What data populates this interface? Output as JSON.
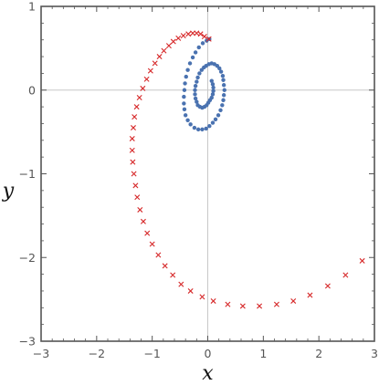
{
  "chart_data": {
    "type": "scatter",
    "title": "",
    "xlabel": "x",
    "ylabel": "y",
    "xlim": [
      -3,
      3
    ],
    "ylim": [
      -3,
      1
    ],
    "xticks": [
      -3,
      -2,
      -1,
      0,
      1,
      2,
      3
    ],
    "yticks": [
      -3,
      -2,
      -1,
      0,
      1
    ],
    "xtick_labels": [
      "−3",
      "−2",
      "−1",
      "0",
      "1",
      "2",
      "3"
    ],
    "ytick_labels": [
      "−3",
      "−2",
      "−1",
      "0",
      "1"
    ],
    "grid": "zero-lines",
    "colors": {
      "blue": "#4a72b0",
      "red": "#d62728",
      "frame": "#555555",
      "zeroline": "#c8c8c8"
    },
    "series": [
      {
        "marker": "dot",
        "color": "#4a72b0",
        "points": [
          [
            0.07,
            0.11
          ],
          [
            0.09,
            0.07
          ],
          [
            0.1,
            0.03
          ],
          [
            0.1,
            -0.01
          ],
          [
            0.09,
            -0.05
          ],
          [
            0.07,
            -0.09
          ],
          [
            0.04,
            -0.12
          ],
          [
            0.01,
            -0.15
          ],
          [
            -0.02,
            -0.18
          ],
          [
            -0.06,
            -0.2
          ],
          [
            -0.1,
            -0.21
          ],
          [
            -0.14,
            -0.2
          ],
          [
            -0.18,
            -0.18
          ],
          [
            -0.2,
            -0.14
          ],
          [
            -0.22,
            -0.1
          ],
          [
            -0.23,
            -0.05
          ],
          [
            -0.23,
            0.0
          ],
          [
            -0.22,
            0.05
          ],
          [
            -0.2,
            0.1
          ],
          [
            -0.18,
            0.15
          ],
          [
            -0.15,
            0.2
          ],
          [
            -0.11,
            0.24
          ],
          [
            -0.07,
            0.27
          ],
          [
            -0.03,
            0.29
          ],
          [
            0.02,
            0.31
          ],
          [
            0.07,
            0.32
          ],
          [
            0.12,
            0.31
          ],
          [
            0.17,
            0.29
          ],
          [
            0.21,
            0.26
          ],
          [
            0.24,
            0.22
          ],
          [
            0.27,
            0.17
          ],
          [
            0.28,
            0.12
          ],
          [
            0.29,
            0.06
          ],
          [
            0.3,
            0.0
          ],
          [
            0.29,
            -0.06
          ],
          [
            0.28,
            -0.12
          ],
          [
            0.26,
            -0.18
          ],
          [
            0.23,
            -0.24
          ],
          [
            0.19,
            -0.3
          ],
          [
            0.14,
            -0.35
          ],
          [
            0.09,
            -0.39
          ],
          [
            0.03,
            -0.43
          ],
          [
            -0.03,
            -0.46
          ],
          [
            -0.1,
            -0.47
          ],
          [
            -0.17,
            -0.47
          ],
          [
            -0.24,
            -0.45
          ],
          [
            -0.31,
            -0.41
          ],
          [
            -0.36,
            -0.36
          ],
          [
            -0.4,
            -0.3
          ],
          [
            -0.42,
            -0.23
          ],
          [
            -0.43,
            -0.16
          ],
          [
            -0.43,
            -0.08
          ],
          [
            -0.42,
            0.0
          ],
          [
            -0.41,
            0.08
          ],
          [
            -0.39,
            0.16
          ],
          [
            -0.36,
            0.24
          ],
          [
            -0.32,
            0.32
          ],
          [
            -0.27,
            0.39
          ],
          [
            -0.22,
            0.45
          ],
          [
            -0.16,
            0.51
          ],
          [
            -0.09,
            0.56
          ],
          [
            -0.02,
            0.59
          ],
          [
            0.03,
            0.61
          ]
        ]
      },
      {
        "marker": "x",
        "color": "#d62728",
        "points": [
          [
            0.02,
            0.61
          ],
          [
            -0.06,
            0.64
          ],
          [
            -0.13,
            0.67
          ],
          [
            -0.2,
            0.68
          ],
          [
            -0.27,
            0.68
          ],
          [
            -0.35,
            0.67
          ],
          [
            -0.44,
            0.65
          ],
          [
            -0.53,
            0.62
          ],
          [
            -0.62,
            0.58
          ],
          [
            -0.7,
            0.53
          ],
          [
            -0.79,
            0.47
          ],
          [
            -0.87,
            0.4
          ],
          [
            -0.95,
            0.32
          ],
          [
            -1.03,
            0.23
          ],
          [
            -1.1,
            0.13
          ],
          [
            -1.17,
            0.02
          ],
          [
            -1.23,
            -0.09
          ],
          [
            -1.28,
            -0.2
          ],
          [
            -1.32,
            -0.32
          ],
          [
            -1.34,
            -0.45
          ],
          [
            -1.36,
            -0.58
          ],
          [
            -1.36,
            -0.72
          ],
          [
            -1.35,
            -0.86
          ],
          [
            -1.33,
            -1.0
          ],
          [
            -1.3,
            -1.14
          ],
          [
            -1.27,
            -1.28
          ],
          [
            -1.22,
            -1.43
          ],
          [
            -1.16,
            -1.57
          ],
          [
            -1.09,
            -1.71
          ],
          [
            -1.0,
            -1.84
          ],
          [
            -0.89,
            -1.97
          ],
          [
            -0.77,
            -2.1
          ],
          [
            -0.63,
            -2.21
          ],
          [
            -0.48,
            -2.32
          ],
          [
            -0.31,
            -2.4
          ],
          [
            -0.1,
            -2.47
          ],
          [
            0.1,
            -2.52
          ],
          [
            0.36,
            -2.56
          ],
          [
            0.63,
            -2.58
          ],
          [
            0.93,
            -2.58
          ],
          [
            1.24,
            -2.56
          ],
          [
            1.54,
            -2.52
          ],
          [
            1.84,
            -2.45
          ],
          [
            2.16,
            -2.34
          ],
          [
            2.48,
            -2.21
          ],
          [
            2.78,
            -2.04
          ]
        ]
      }
    ]
  }
}
